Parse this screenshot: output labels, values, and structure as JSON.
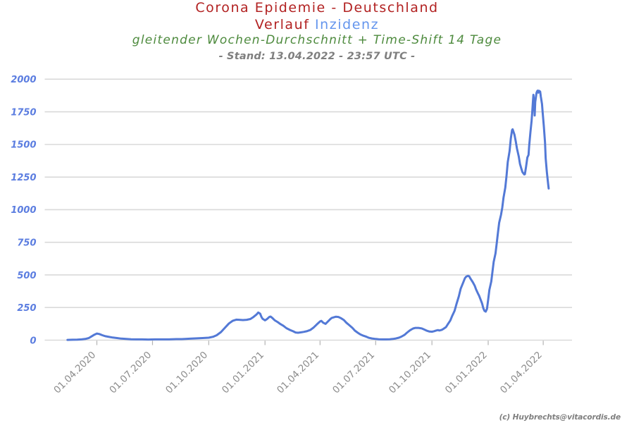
{
  "page": {
    "background": "#ffffff"
  },
  "header": {},
  "footer": {
    "credit": "(c) Huybrechts@vitacordis.de"
  },
  "colors": {
    "title_red": "#b22222",
    "inzidenz_blue": "#6495ed",
    "note_green": "#4d8a3d",
    "stand_gray": "#7f7f7f",
    "line_blue": "#5379d6",
    "ytick_blue": "#5b7de0",
    "xtick_gray": "#8c8c8c",
    "grid_gray": "#d9d9d9"
  },
  "chart_data": {
    "type": "line",
    "title": "Corona Epidemie - Deutschland",
    "subtitle_prefix": "Verlauf",
    "subtitle_highlight": "Inzidenz",
    "method_note": "gleitender Wochen-Durchschnitt + Time-Shift 14 Tage",
    "stand_note": "- Stand: 13.04.2022 - 23:57 UTC -",
    "xlabel": "",
    "ylabel": "",
    "ylim": [
      0,
      2000
    ],
    "yticks": [
      0,
      250,
      500,
      750,
      1000,
      1250,
      1500,
      1750,
      2000
    ],
    "xticks": [
      {
        "date": "2020-04-01",
        "label": "01.04.2020"
      },
      {
        "date": "2020-07-01",
        "label": "01.07.2020"
      },
      {
        "date": "2020-10-01",
        "label": "01.10.2020"
      },
      {
        "date": "2021-01-01",
        "label": "01.01.2021"
      },
      {
        "date": "2021-04-01",
        "label": "01.04.2021"
      },
      {
        "date": "2021-07-01",
        "label": "01.07.2021"
      },
      {
        "date": "2021-10-01",
        "label": "01.10.2021"
      },
      {
        "date": "2022-01-01",
        "label": "01.01.2022"
      },
      {
        "date": "2022-04-01",
        "label": "01.04.2022"
      }
    ],
    "grid": "horizontal",
    "legend_position": "none",
    "series": [
      {
        "name": "Inzidenz",
        "color": "#5379d6",
        "points": [
          [
            "2020-02-13",
            2
          ],
          [
            "2020-02-21",
            3
          ],
          [
            "2020-02-29",
            4
          ],
          [
            "2020-03-07",
            6
          ],
          [
            "2020-03-13",
            9
          ],
          [
            "2020-03-19",
            17
          ],
          [
            "2020-03-23",
            28
          ],
          [
            "2020-03-28",
            42
          ],
          [
            "2020-04-01",
            51
          ],
          [
            "2020-04-05",
            47
          ],
          [
            "2020-04-10",
            38
          ],
          [
            "2020-04-15",
            30
          ],
          [
            "2020-04-21",
            25
          ],
          [
            "2020-04-27",
            20
          ],
          [
            "2020-05-04",
            16
          ],
          [
            "2020-05-11",
            12
          ],
          [
            "2020-05-19",
            9
          ],
          [
            "2020-05-27",
            7
          ],
          [
            "2020-06-05",
            6
          ],
          [
            "2020-06-14",
            6
          ],
          [
            "2020-06-24",
            5
          ],
          [
            "2020-07-05",
            6
          ],
          [
            "2020-07-17",
            6
          ],
          [
            "2020-07-28",
            6
          ],
          [
            "2020-08-09",
            8
          ],
          [
            "2020-08-18",
            8
          ],
          [
            "2020-08-26",
            10
          ],
          [
            "2020-09-03",
            12
          ],
          [
            "2020-09-12",
            14
          ],
          [
            "2020-09-21",
            16
          ],
          [
            "2020-10-01",
            19
          ],
          [
            "2020-10-08",
            26
          ],
          [
            "2020-10-14",
            38
          ],
          [
            "2020-10-21",
            62
          ],
          [
            "2020-10-28",
            98
          ],
          [
            "2020-11-03",
            128
          ],
          [
            "2020-11-09",
            148
          ],
          [
            "2020-11-15",
            157
          ],
          [
            "2020-11-20",
            156
          ],
          [
            "2020-11-26",
            154
          ],
          [
            "2020-12-02",
            156
          ],
          [
            "2020-12-08",
            162
          ],
          [
            "2020-12-13",
            177
          ],
          [
            "2020-12-18",
            196
          ],
          [
            "2020-12-21",
            212
          ],
          [
            "2020-12-24",
            203
          ],
          [
            "2020-12-26",
            180
          ],
          [
            "2020-12-28",
            164
          ],
          [
            "2021-01-01",
            152
          ],
          [
            "2021-01-04",
            161
          ],
          [
            "2021-01-08",
            178
          ],
          [
            "2021-01-10",
            181
          ],
          [
            "2021-01-13",
            170
          ],
          [
            "2021-01-17",
            152
          ],
          [
            "2021-01-22",
            138
          ],
          [
            "2021-01-26",
            124
          ],
          [
            "2021-01-31",
            110
          ],
          [
            "2021-02-05",
            92
          ],
          [
            "2021-02-11",
            78
          ],
          [
            "2021-02-16",
            68
          ],
          [
            "2021-02-20",
            59
          ],
          [
            "2021-02-24",
            57
          ],
          [
            "2021-03-01",
            60
          ],
          [
            "2021-03-05",
            63
          ],
          [
            "2021-03-10",
            68
          ],
          [
            "2021-03-16",
            78
          ],
          [
            "2021-03-21",
            95
          ],
          [
            "2021-03-27",
            122
          ],
          [
            "2021-04-01",
            143
          ],
          [
            "2021-04-03",
            148
          ],
          [
            "2021-04-06",
            134
          ],
          [
            "2021-04-10",
            125
          ],
          [
            "2021-04-13",
            139
          ],
          [
            "2021-04-17",
            158
          ],
          [
            "2021-04-20",
            170
          ],
          [
            "2021-04-24",
            176
          ],
          [
            "2021-04-27",
            180
          ],
          [
            "2021-05-01",
            178
          ],
          [
            "2021-05-05",
            169
          ],
          [
            "2021-05-10",
            154
          ],
          [
            "2021-05-14",
            134
          ],
          [
            "2021-05-19",
            114
          ],
          [
            "2021-05-24",
            94
          ],
          [
            "2021-05-28",
            73
          ],
          [
            "2021-06-02",
            56
          ],
          [
            "2021-06-06",
            44
          ],
          [
            "2021-06-11",
            34
          ],
          [
            "2021-06-16",
            26
          ],
          [
            "2021-06-20",
            18
          ],
          [
            "2021-06-25",
            13
          ],
          [
            "2021-07-01",
            9
          ],
          [
            "2021-07-06",
            7
          ],
          [
            "2021-07-12",
            6
          ],
          [
            "2021-07-18",
            6
          ],
          [
            "2021-07-24",
            7
          ],
          [
            "2021-07-29",
            9
          ],
          [
            "2021-08-03",
            13
          ],
          [
            "2021-08-08",
            19
          ],
          [
            "2021-08-12",
            27
          ],
          [
            "2021-08-17",
            40
          ],
          [
            "2021-08-21",
            57
          ],
          [
            "2021-08-26",
            75
          ],
          [
            "2021-08-31",
            89
          ],
          [
            "2021-09-04",
            94
          ],
          [
            "2021-09-09",
            94
          ],
          [
            "2021-09-14",
            90
          ],
          [
            "2021-09-18",
            82
          ],
          [
            "2021-09-23",
            72
          ],
          [
            "2021-09-27",
            66
          ],
          [
            "2021-10-01",
            65
          ],
          [
            "2021-10-04",
            68
          ],
          [
            "2021-10-08",
            74
          ],
          [
            "2021-10-11",
            77
          ],
          [
            "2021-10-13",
            74
          ],
          [
            "2021-10-17",
            79
          ],
          [
            "2021-10-20",
            87
          ],
          [
            "2021-10-24",
            100
          ],
          [
            "2021-10-27",
            122
          ],
          [
            "2021-10-31",
            150
          ],
          [
            "2021-11-03",
            185
          ],
          [
            "2021-11-07",
            225
          ],
          [
            "2021-11-10",
            275
          ],
          [
            "2021-11-14",
            335
          ],
          [
            "2021-11-17",
            395
          ],
          [
            "2021-11-21",
            440
          ],
          [
            "2021-11-24",
            475
          ],
          [
            "2021-11-26",
            487
          ],
          [
            "2021-11-29",
            493
          ],
          [
            "2021-12-01",
            489
          ],
          [
            "2021-12-03",
            472
          ],
          [
            "2021-12-07",
            443
          ],
          [
            "2021-12-10",
            417
          ],
          [
            "2021-12-12",
            390
          ],
          [
            "2021-12-15",
            360
          ],
          [
            "2021-12-17",
            342
          ],
          [
            "2021-12-19",
            318
          ],
          [
            "2021-12-22",
            282
          ],
          [
            "2021-12-24",
            245
          ],
          [
            "2021-12-26",
            224
          ],
          [
            "2021-12-28",
            219
          ],
          [
            "2021-12-30",
            240
          ],
          [
            "2022-01-01",
            310
          ],
          [
            "2022-01-03",
            385
          ],
          [
            "2022-01-06",
            450
          ],
          [
            "2022-01-08",
            525
          ],
          [
            "2022-01-10",
            600
          ],
          [
            "2022-01-13",
            665
          ],
          [
            "2022-01-15",
            745
          ],
          [
            "2022-01-17",
            825
          ],
          [
            "2022-01-19",
            900
          ],
          [
            "2022-01-22",
            960
          ],
          [
            "2022-01-24",
            1015
          ],
          [
            "2022-01-26",
            1090
          ],
          [
            "2022-01-29",
            1170
          ],
          [
            "2022-01-31",
            1262
          ],
          [
            "2022-02-02",
            1365
          ],
          [
            "2022-02-05",
            1450
          ],
          [
            "2022-02-07",
            1545
          ],
          [
            "2022-02-09",
            1610
          ],
          [
            "2022-02-10",
            1616
          ],
          [
            "2022-02-13",
            1575
          ],
          [
            "2022-02-15",
            1525
          ],
          [
            "2022-02-17",
            1470
          ],
          [
            "2022-02-20",
            1408
          ],
          [
            "2022-02-22",
            1352
          ],
          [
            "2022-02-24",
            1318
          ],
          [
            "2022-02-26",
            1288
          ],
          [
            "2022-03-01",
            1270
          ],
          [
            "2022-03-02",
            1272
          ],
          [
            "2022-03-04",
            1330
          ],
          [
            "2022-03-06",
            1400
          ],
          [
            "2022-03-08",
            1420
          ],
          [
            "2022-03-09",
            1490
          ],
          [
            "2022-03-11",
            1590
          ],
          [
            "2022-03-13",
            1680
          ],
          [
            "2022-03-14",
            1745
          ],
          [
            "2022-03-15",
            1820
          ],
          [
            "2022-03-16",
            1880
          ],
          [
            "2022-03-17",
            1830
          ],
          [
            "2022-03-18",
            1722
          ],
          [
            "2022-03-19",
            1825
          ],
          [
            "2022-03-21",
            1895
          ],
          [
            "2022-03-22",
            1908
          ],
          [
            "2022-03-23",
            1912
          ],
          [
            "2022-03-24",
            1897
          ],
          [
            "2022-03-25",
            1911
          ],
          [
            "2022-03-27",
            1905
          ],
          [
            "2022-03-28",
            1868
          ],
          [
            "2022-03-30",
            1810
          ],
          [
            "2022-03-31",
            1748
          ],
          [
            "2022-04-02",
            1640
          ],
          [
            "2022-04-04",
            1515
          ],
          [
            "2022-04-05",
            1395
          ],
          [
            "2022-04-07",
            1288
          ],
          [
            "2022-04-09",
            1198
          ],
          [
            "2022-04-10",
            1162
          ]
        ]
      }
    ]
  }
}
